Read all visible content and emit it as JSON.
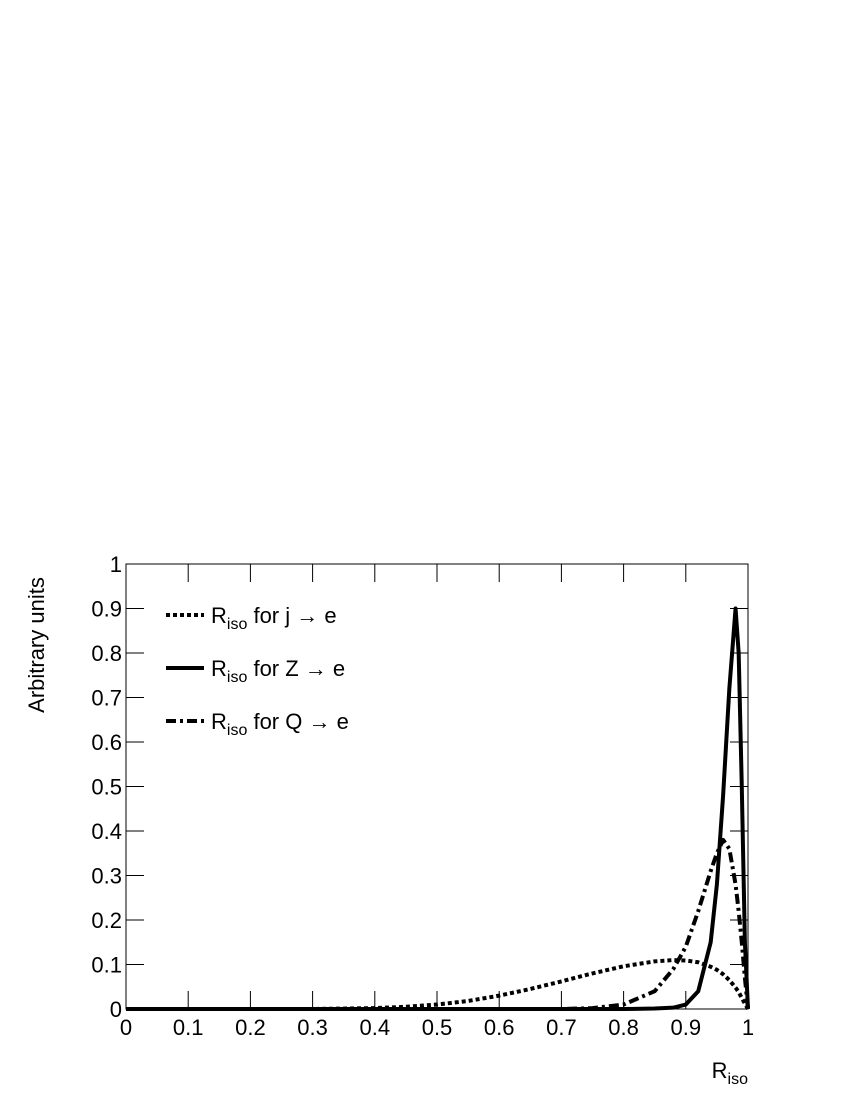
{
  "chart_data": {
    "type": "line",
    "x_label": "Riso",
    "y_label": "Arbitrary units",
    "x": [
      0,
      0.1,
      0.2,
      0.3,
      0.4,
      0.45,
      0.5,
      0.55,
      0.6,
      0.65,
      0.7,
      0.75,
      0.8,
      0.85,
      0.88,
      0.9,
      0.92,
      0.94,
      0.95,
      0.96,
      0.97,
      0.98,
      0.985,
      0.99,
      0.995,
      1.0
    ],
    "series": [
      {
        "name": "Riso for j → e",
        "color": "#000000",
        "style": "dotted",
        "values": [
          0,
          0,
          0,
          0,
          0.002,
          0.005,
          0.01,
          0.018,
          0.03,
          0.045,
          0.062,
          0.08,
          0.096,
          0.107,
          0.11,
          0.109,
          0.105,
          0.095,
          0.088,
          0.078,
          0.065,
          0.048,
          0.038,
          0.025,
          0.012,
          0
        ]
      },
      {
        "name": "Riso for Z → e",
        "color": "#000000",
        "style": "solid",
        "values": [
          0,
          0,
          0,
          0,
          0,
          0,
          0,
          0,
          0,
          0,
          0,
          0,
          0,
          0.001,
          0.003,
          0.01,
          0.04,
          0.15,
          0.28,
          0.48,
          0.72,
          0.9,
          0.8,
          0.5,
          0.15,
          0
        ]
      },
      {
        "name": "Riso for Q → e",
        "color": "#000000",
        "style": "dashdot",
        "values": [
          0,
          0,
          0,
          0,
          0,
          0,
          0,
          0,
          0,
          0,
          0,
          0.002,
          0.01,
          0.04,
          0.09,
          0.14,
          0.22,
          0.31,
          0.35,
          0.38,
          0.36,
          0.28,
          0.22,
          0.15,
          0.07,
          0
        ]
      }
    ],
    "xlim": [
      0,
      1
    ],
    "xticks": [
      0,
      0.1,
      0.2,
      0.3,
      0.4,
      0.5,
      0.6,
      0.7,
      0.8,
      0.9,
      1
    ],
    "ylim": [
      0,
      1
    ],
    "yticks": [
      0,
      0.1,
      0.2,
      0.3,
      0.4,
      0.5,
      0.6,
      0.7,
      0.8,
      0.9,
      1
    ],
    "legend": "upper-left",
    "grid": false
  }
}
